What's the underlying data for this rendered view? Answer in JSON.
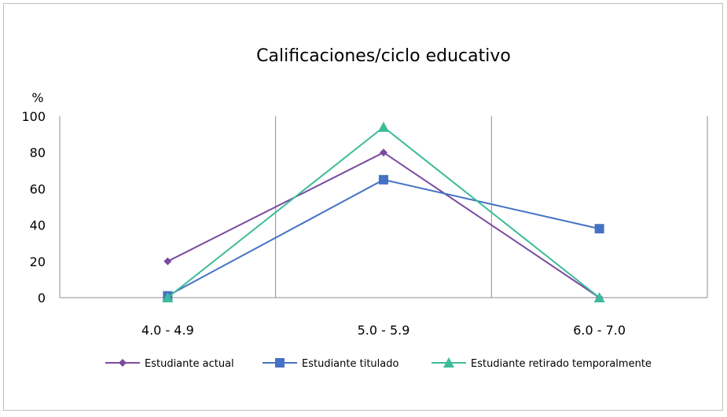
{
  "chart_data": {
    "type": "line",
    "title": "Calificaciones/ciclo educativo",
    "ylabel": "%",
    "xlabel": "",
    "categories": [
      "4.0 - 4.9",
      "5.0 - 5.9",
      "6.0 - 7.0"
    ],
    "ylim": [
      0,
      100
    ],
    "yticks": [
      "0",
      "20",
      "40",
      "60",
      "80",
      "100"
    ],
    "grid": "vertical category separators",
    "legend_position": "bottom",
    "series": [
      {
        "name": "Estudiante actual",
        "values": [
          20,
          80,
          0
        ],
        "color": "#7b4aa0",
        "marker": "diamond"
      },
      {
        "name": "Estudiante titulado",
        "values": [
          1,
          65,
          38
        ],
        "color": "#4472c4",
        "marker": "square"
      },
      {
        "name": "Estudiante retirado temporalmente",
        "values": [
          0,
          94,
          0
        ],
        "color": "#3dbb9a",
        "marker": "triangle"
      }
    ]
  }
}
